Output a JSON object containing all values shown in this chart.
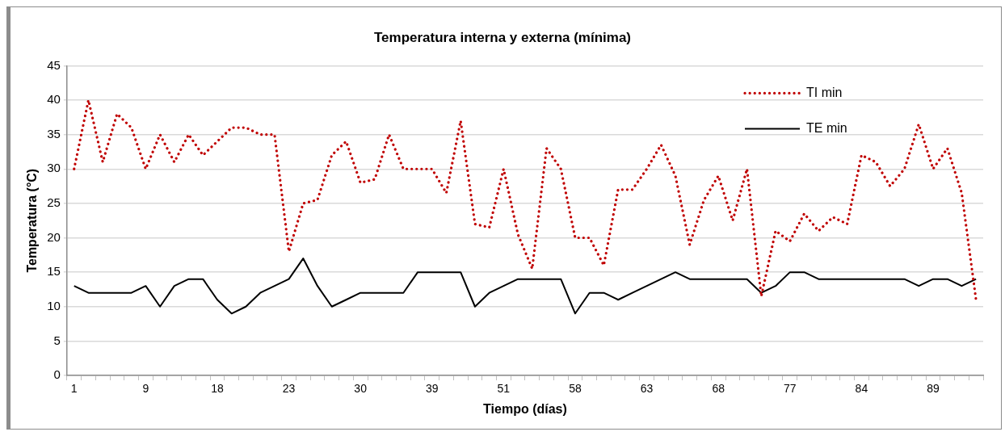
{
  "chart_data": {
    "type": "line",
    "title": "Temperatura interna y externa (mínima)",
    "xlabel": "Tiempo (días)",
    "ylabel": "Temperatura (°C)",
    "categories": [
      "1",
      null,
      null,
      null,
      null,
      "9",
      null,
      null,
      null,
      null,
      "18",
      null,
      null,
      null,
      null,
      "23",
      null,
      null,
      null,
      null,
      "30",
      null,
      null,
      null,
      null,
      "39",
      null,
      null,
      null,
      null,
      "51",
      null,
      null,
      null,
      null,
      "58",
      null,
      null,
      null,
      null,
      "63",
      null,
      null,
      null,
      null,
      "68",
      null,
      null,
      null,
      null,
      "77",
      null,
      null,
      null,
      null,
      "84",
      null,
      null,
      null,
      null,
      "89",
      null,
      null,
      null
    ],
    "series": [
      {
        "name": "TI min",
        "color": "#c00000",
        "line_style": "dotted",
        "values": [
          30,
          40,
          31,
          38,
          36,
          30,
          35,
          31,
          35,
          32,
          34,
          36,
          36,
          35,
          35,
          18,
          25,
          25.5,
          32,
          34,
          28,
          28.5,
          35,
          30,
          30,
          30,
          26.5,
          37,
          22,
          21.5,
          30,
          20.5,
          15.5,
          33,
          30,
          20,
          20,
          16,
          27,
          27,
          30,
          33.5,
          29,
          19,
          25.5,
          29,
          22.5,
          30,
          11.5,
          21,
          19.5,
          23.5,
          21,
          23,
          22,
          32,
          31,
          27.5,
          30,
          36.5,
          30,
          33,
          26.5,
          11
        ]
      },
      {
        "name": "TE min",
        "color": "#000000",
        "line_style": "solid",
        "values": [
          13,
          12,
          12,
          12,
          12,
          13,
          10,
          13,
          14,
          14,
          11,
          9,
          10,
          12,
          13,
          14,
          17,
          13,
          10,
          11,
          12,
          12,
          12,
          12,
          15,
          15,
          15,
          15,
          10,
          12,
          13,
          14,
          14,
          14,
          14,
          9,
          12,
          12,
          11,
          12,
          13,
          14,
          15,
          14,
          14,
          14,
          14,
          14,
          12,
          13,
          15,
          15,
          14,
          14,
          14,
          14,
          14,
          14,
          14,
          13,
          14,
          14,
          13,
          14
        ]
      }
    ],
    "ylim": [
      0,
      45
    ],
    "yticks": [
      0,
      5,
      10,
      15,
      20,
      25,
      30,
      35,
      40,
      45
    ],
    "grid": "y",
    "legend": "top right",
    "marker": "none"
  }
}
